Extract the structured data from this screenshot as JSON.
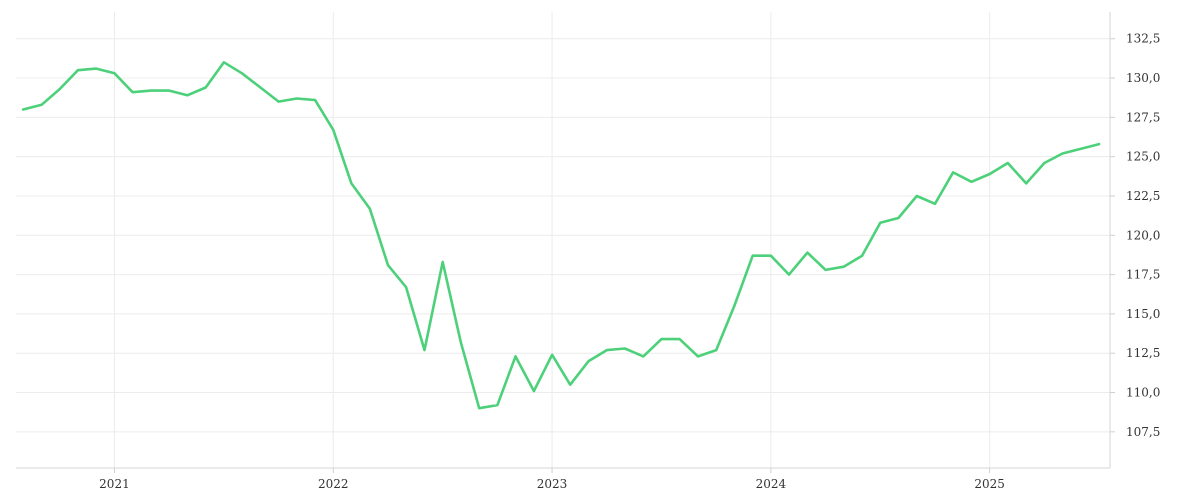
{
  "chart_data": {
    "type": "line",
    "title": "",
    "xlabel": "",
    "ylabel": "",
    "grid": true,
    "y_axis_side": "right",
    "line_color": "#4cd17a",
    "xlim": [
      2020.55,
      2025.55
    ],
    "ylim": [
      105.2,
      134.2
    ],
    "x_ticks": [
      {
        "value": 2021,
        "label": "2021"
      },
      {
        "value": 2022,
        "label": "2022"
      },
      {
        "value": 2023,
        "label": "2023"
      },
      {
        "value": 2024,
        "label": "2024"
      },
      {
        "value": 2025,
        "label": "2025"
      }
    ],
    "y_ticks": [
      {
        "value": 107.5,
        "label": "107,5"
      },
      {
        "value": 110.0,
        "label": "110,0"
      },
      {
        "value": 112.5,
        "label": "112,5"
      },
      {
        "value": 115.0,
        "label": "115,0"
      },
      {
        "value": 117.5,
        "label": "117,5"
      },
      {
        "value": 120.0,
        "label": "120,0"
      },
      {
        "value": 122.5,
        "label": "122,5"
      },
      {
        "value": 125.0,
        "label": "125,0"
      },
      {
        "value": 127.5,
        "label": "127,5"
      },
      {
        "value": 130.0,
        "label": "130,0"
      },
      {
        "value": 132.5,
        "label": "132,5"
      }
    ],
    "series": [
      {
        "x": [
          2020.583,
          2020.667,
          2020.75,
          2020.833,
          2020.917,
          2021.0,
          2021.083,
          2021.167,
          2021.25,
          2021.333,
          2021.417,
          2021.5,
          2021.583,
          2021.667,
          2021.75,
          2021.833,
          2021.917,
          2022.0,
          2022.083,
          2022.167,
          2022.25,
          2022.333,
          2022.417,
          2022.5,
          2022.583,
          2022.667,
          2022.75,
          2022.833,
          2022.917,
          2023.0,
          2023.083,
          2023.167,
          2023.25,
          2023.333,
          2023.417,
          2023.5,
          2023.583,
          2023.667,
          2023.75,
          2023.833,
          2023.917,
          2024.0,
          2024.083,
          2024.167,
          2024.25,
          2024.333,
          2024.417,
          2024.5,
          2024.583,
          2024.667,
          2024.75,
          2024.833,
          2024.917,
          2025.0,
          2025.083,
          2025.167,
          2025.25,
          2025.333,
          2025.5
        ],
        "values": [
          128.0,
          128.3,
          129.3,
          130.5,
          130.6,
          130.3,
          129.1,
          129.2,
          129.2,
          128.9,
          129.4,
          131.0,
          130.3,
          129.4,
          128.5,
          128.7,
          128.6,
          126.7,
          123.3,
          121.7,
          118.1,
          116.7,
          112.7,
          118.3,
          113.2,
          109.0,
          109.2,
          112.3,
          110.1,
          112.4,
          110.5,
          112.0,
          112.7,
          112.8,
          112.3,
          113.4,
          113.4,
          112.3,
          112.7,
          115.5,
          118.7,
          118.7,
          117.5,
          118.9,
          117.8,
          118.0,
          118.7,
          120.8,
          121.1,
          122.5,
          122.0,
          124.0,
          123.4,
          123.9,
          124.6,
          123.3,
          124.6,
          125.2,
          125.8
        ]
      }
    ]
  }
}
